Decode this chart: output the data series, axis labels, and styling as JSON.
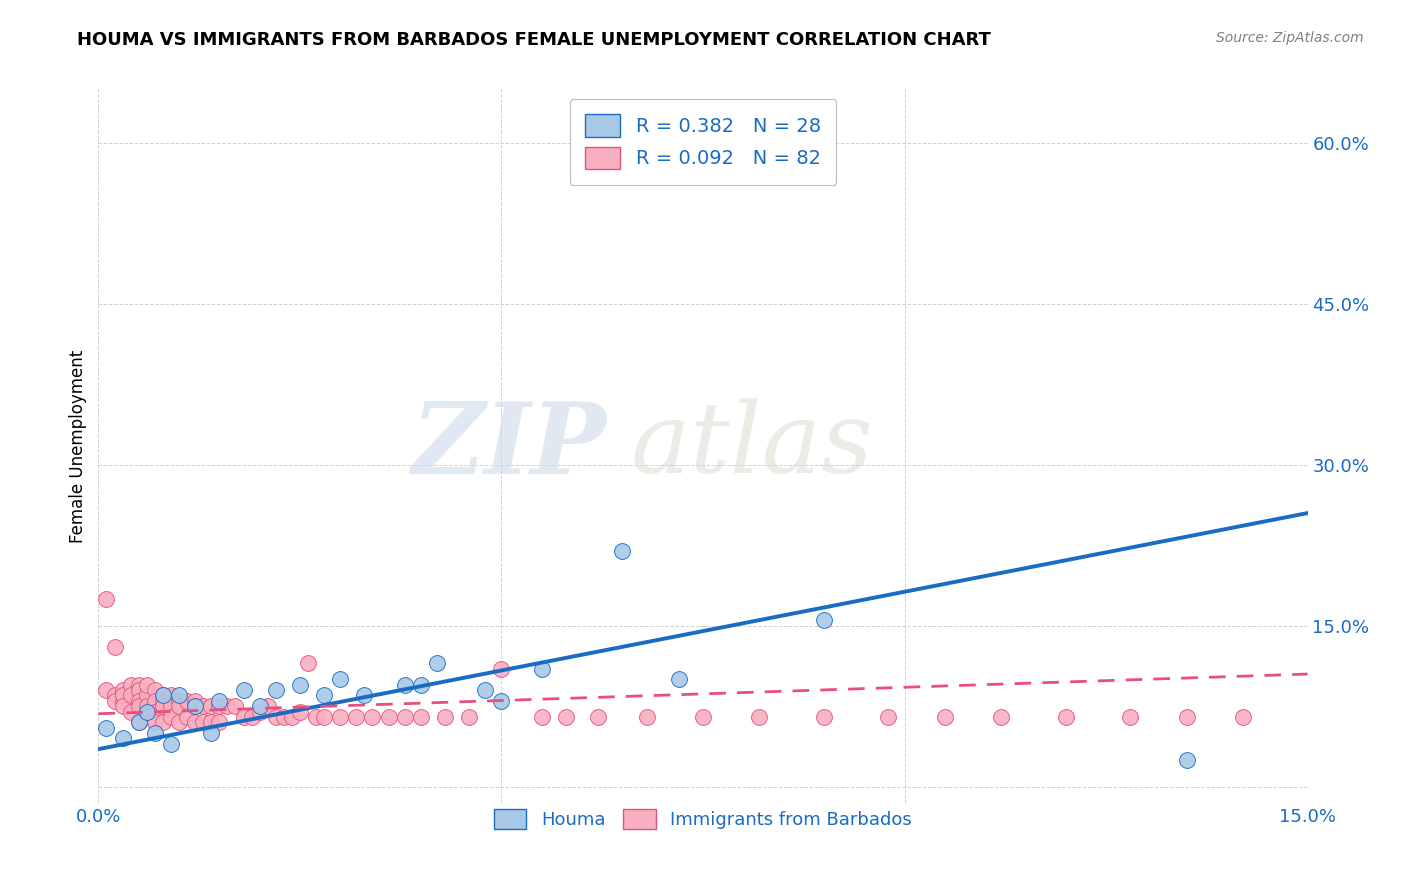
{
  "title": "HOUMA VS IMMIGRANTS FROM BARBADOS FEMALE UNEMPLOYMENT CORRELATION CHART",
  "source": "Source: ZipAtlas.com",
  "ylabel": "Female Unemployment",
  "xlim": [
    0.0,
    0.15
  ],
  "ylim": [
    -0.015,
    0.65
  ],
  "yticks": [
    0.0,
    0.15,
    0.3,
    0.45,
    0.6
  ],
  "ytick_labels": [
    "",
    "15.0%",
    "30.0%",
    "45.0%",
    "60.0%"
  ],
  "xticks": [
    0.0,
    0.05,
    0.1,
    0.15
  ],
  "xtick_labels": [
    "0.0%",
    "",
    "",
    "15.0%"
  ],
  "houma_color": "#a8c8e8",
  "barbados_color": "#f8b0c0",
  "houma_line_color": "#1a6bc4",
  "barbados_line_color": "#e8507a",
  "R_houma": 0.382,
  "N_houma": 28,
  "R_barbados": 0.092,
  "N_barbados": 82,
  "houma_scatter_x": [
    0.001,
    0.003,
    0.005,
    0.006,
    0.007,
    0.008,
    0.009,
    0.01,
    0.012,
    0.014,
    0.015,
    0.018,
    0.02,
    0.022,
    0.025,
    0.028,
    0.03,
    0.033,
    0.038,
    0.04,
    0.042,
    0.048,
    0.05,
    0.055,
    0.065,
    0.072,
    0.09,
    0.135
  ],
  "houma_scatter_y": [
    0.055,
    0.045,
    0.06,
    0.07,
    0.05,
    0.085,
    0.04,
    0.085,
    0.075,
    0.05,
    0.08,
    0.09,
    0.075,
    0.09,
    0.095,
    0.085,
    0.1,
    0.085,
    0.095,
    0.095,
    0.115,
    0.09,
    0.08,
    0.11,
    0.22,
    0.1,
    0.155,
    0.025
  ],
  "barbados_scatter_x": [
    0.001,
    0.001,
    0.002,
    0.002,
    0.002,
    0.003,
    0.003,
    0.003,
    0.003,
    0.004,
    0.004,
    0.004,
    0.005,
    0.005,
    0.005,
    0.005,
    0.005,
    0.006,
    0.006,
    0.006,
    0.006,
    0.007,
    0.007,
    0.007,
    0.007,
    0.008,
    0.008,
    0.008,
    0.008,
    0.009,
    0.009,
    0.009,
    0.01,
    0.01,
    0.01,
    0.011,
    0.011,
    0.012,
    0.012,
    0.012,
    0.013,
    0.013,
    0.014,
    0.014,
    0.015,
    0.015,
    0.016,
    0.017,
    0.018,
    0.019,
    0.02,
    0.021,
    0.022,
    0.023,
    0.024,
    0.025,
    0.026,
    0.027,
    0.028,
    0.03,
    0.032,
    0.034,
    0.036,
    0.038,
    0.04,
    0.043,
    0.046,
    0.05,
    0.055,
    0.058,
    0.062,
    0.068,
    0.075,
    0.082,
    0.09,
    0.098,
    0.105,
    0.112,
    0.12,
    0.128,
    0.135,
    0.142
  ],
  "barbados_scatter_y": [
    0.175,
    0.09,
    0.13,
    0.085,
    0.08,
    0.09,
    0.08,
    0.085,
    0.075,
    0.095,
    0.085,
    0.07,
    0.095,
    0.09,
    0.08,
    0.075,
    0.06,
    0.085,
    0.095,
    0.075,
    0.065,
    0.09,
    0.08,
    0.07,
    0.06,
    0.085,
    0.08,
    0.075,
    0.06,
    0.085,
    0.075,
    0.065,
    0.08,
    0.075,
    0.06,
    0.08,
    0.065,
    0.08,
    0.075,
    0.06,
    0.075,
    0.06,
    0.075,
    0.06,
    0.075,
    0.06,
    0.075,
    0.075,
    0.065,
    0.065,
    0.07,
    0.075,
    0.065,
    0.065,
    0.065,
    0.07,
    0.115,
    0.065,
    0.065,
    0.065,
    0.065,
    0.065,
    0.065,
    0.065,
    0.065,
    0.065,
    0.065,
    0.11,
    0.065,
    0.065,
    0.065,
    0.065,
    0.065,
    0.065,
    0.065,
    0.065,
    0.065,
    0.065,
    0.065,
    0.065,
    0.065,
    0.065
  ],
  "houma_line_x": [
    0.0,
    0.15
  ],
  "houma_line_y": [
    0.035,
    0.255
  ],
  "barbados_line_x": [
    0.0,
    0.15
  ],
  "barbados_line_y": [
    0.068,
    0.105
  ],
  "watermark_zip": "ZIP",
  "watermark_atlas": "atlas",
  "background_color": "#ffffff",
  "grid_color": "#cccccc",
  "title_fontsize": 13,
  "tick_fontsize": 13,
  "source_fontsize": 10
}
